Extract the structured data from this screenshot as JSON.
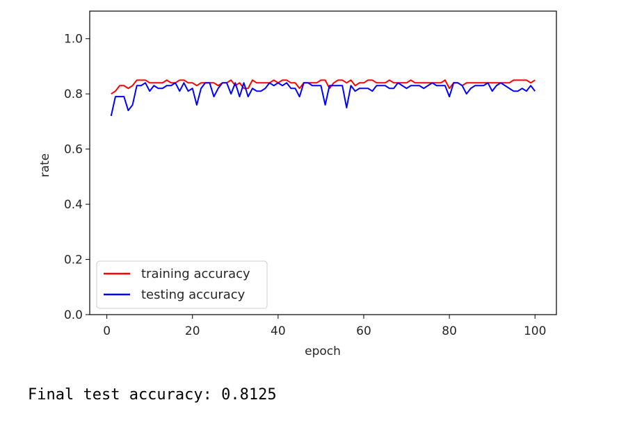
{
  "chart_data": {
    "type": "line",
    "title": "",
    "xlabel": "epoch",
    "ylabel": "rate",
    "xlim": [
      -4,
      105
    ],
    "ylim": [
      0.0,
      1.1
    ],
    "xticks": [
      "0",
      "20",
      "40",
      "60",
      "80",
      "100"
    ],
    "yticks": [
      "0.0",
      "0.2",
      "0.4",
      "0.6",
      "0.8",
      "1.0"
    ],
    "grid": false,
    "legend_position": "lower-left",
    "x": [
      1,
      2,
      3,
      4,
      5,
      6,
      7,
      8,
      9,
      10,
      11,
      12,
      13,
      14,
      15,
      16,
      17,
      18,
      19,
      20,
      21,
      22,
      23,
      24,
      25,
      26,
      27,
      28,
      29,
      30,
      31,
      32,
      33,
      34,
      35,
      36,
      37,
      38,
      39,
      40,
      41,
      42,
      43,
      44,
      45,
      46,
      47,
      48,
      49,
      50,
      51,
      52,
      53,
      54,
      55,
      56,
      57,
      58,
      59,
      60,
      61,
      62,
      63,
      64,
      65,
      66,
      67,
      68,
      69,
      70,
      71,
      72,
      73,
      74,
      75,
      76,
      77,
      78,
      79,
      80,
      81,
      82,
      83,
      84,
      85,
      86,
      87,
      88,
      89,
      90,
      91,
      92,
      93,
      94,
      95,
      96,
      97,
      98,
      99,
      100
    ],
    "series": [
      {
        "name": "training accuracy",
        "color": "#ff0000",
        "values": [
          0.8,
          0.81,
          0.83,
          0.83,
          0.82,
          0.83,
          0.85,
          0.85,
          0.85,
          0.84,
          0.84,
          0.84,
          0.84,
          0.85,
          0.84,
          0.84,
          0.85,
          0.85,
          0.84,
          0.84,
          0.83,
          0.84,
          0.84,
          0.84,
          0.84,
          0.83,
          0.84,
          0.84,
          0.85,
          0.83,
          0.84,
          0.82,
          0.82,
          0.85,
          0.84,
          0.84,
          0.84,
          0.84,
          0.85,
          0.84,
          0.85,
          0.85,
          0.84,
          0.84,
          0.82,
          0.84,
          0.84,
          0.84,
          0.84,
          0.85,
          0.85,
          0.82,
          0.84,
          0.85,
          0.85,
          0.84,
          0.85,
          0.83,
          0.84,
          0.84,
          0.85,
          0.85,
          0.84,
          0.84,
          0.84,
          0.85,
          0.84,
          0.84,
          0.84,
          0.84,
          0.85,
          0.84,
          0.84,
          0.84,
          0.84,
          0.84,
          0.84,
          0.84,
          0.85,
          0.82,
          0.84,
          0.84,
          0.83,
          0.84,
          0.84,
          0.84,
          0.84,
          0.84,
          0.84,
          0.84,
          0.84,
          0.84,
          0.84,
          0.84,
          0.85,
          0.85,
          0.85,
          0.85,
          0.84,
          0.85
        ]
      },
      {
        "name": "testing accuracy",
        "color": "#0000ff",
        "values": [
          0.72,
          0.79,
          0.79,
          0.79,
          0.74,
          0.76,
          0.83,
          0.83,
          0.84,
          0.81,
          0.83,
          0.82,
          0.82,
          0.83,
          0.83,
          0.84,
          0.81,
          0.84,
          0.81,
          0.82,
          0.76,
          0.82,
          0.84,
          0.84,
          0.79,
          0.82,
          0.84,
          0.84,
          0.8,
          0.84,
          0.79,
          0.84,
          0.79,
          0.82,
          0.81,
          0.81,
          0.82,
          0.84,
          0.83,
          0.84,
          0.83,
          0.84,
          0.82,
          0.82,
          0.79,
          0.84,
          0.84,
          0.83,
          0.83,
          0.83,
          0.76,
          0.83,
          0.83,
          0.83,
          0.83,
          0.75,
          0.83,
          0.81,
          0.82,
          0.82,
          0.82,
          0.81,
          0.83,
          0.83,
          0.83,
          0.82,
          0.82,
          0.84,
          0.83,
          0.82,
          0.83,
          0.83,
          0.83,
          0.82,
          0.83,
          0.84,
          0.83,
          0.83,
          0.83,
          0.79,
          0.84,
          0.84,
          0.83,
          0.8,
          0.82,
          0.83,
          0.83,
          0.83,
          0.84,
          0.81,
          0.83,
          0.84,
          0.83,
          0.82,
          0.81,
          0.81,
          0.82,
          0.81,
          0.83,
          0.81
        ]
      }
    ]
  },
  "output": {
    "text": "Final test accuracy: 0.8125"
  }
}
